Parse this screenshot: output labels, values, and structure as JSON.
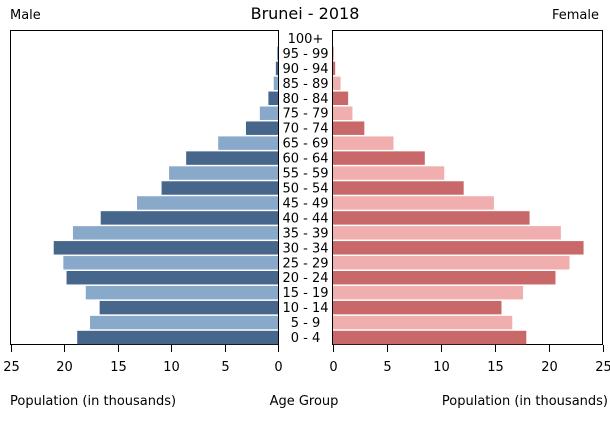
{
  "chart_data": {
    "type": "bar",
    "title": "Brunei - 2018",
    "left_label": "Male",
    "right_label": "Female",
    "center_label": "Age Group",
    "xlabel_left": "Population (in thousands)",
    "xlabel_right": "Population (in thousands)",
    "xlim": [
      0,
      25
    ],
    "xticks": [
      "25",
      "20",
      "15",
      "10",
      "5",
      "0",
      "0",
      "5",
      "10",
      "15",
      "20",
      "25"
    ],
    "categories": [
      "100+",
      "95 - 99",
      "90 - 94",
      "85 - 89",
      "80 - 84",
      "75 - 79",
      "70 - 74",
      "65 - 69",
      "60 - 64",
      "55 - 59",
      "50 - 54",
      "45 - 49",
      "40 - 44",
      "35 - 39",
      "30 - 34",
      "25 - 29",
      "20 - 24",
      "15 - 19",
      "10 - 14",
      "5 - 9",
      "0 - 4"
    ],
    "series": [
      {
        "name": "Male",
        "values": [
          0.0,
          0.1,
          0.2,
          0.4,
          0.9,
          1.7,
          3.0,
          5.6,
          8.6,
          10.2,
          10.9,
          13.2,
          16.6,
          19.2,
          21.0,
          20.1,
          19.8,
          18.0,
          16.7,
          17.6,
          18.8
        ]
      },
      {
        "name": "Female",
        "values": [
          0.0,
          0.1,
          0.2,
          0.7,
          1.4,
          1.8,
          2.9,
          5.6,
          8.5,
          10.3,
          12.1,
          14.9,
          18.2,
          21.1,
          23.2,
          21.9,
          20.6,
          17.6,
          15.6,
          16.6,
          17.9
        ]
      }
    ],
    "colors": {
      "male_dark": "#46678b",
      "male_light": "#89a9ca",
      "female_dark": "#c96868",
      "female_light": "#f0aeae",
      "frame": "#000000"
    }
  }
}
